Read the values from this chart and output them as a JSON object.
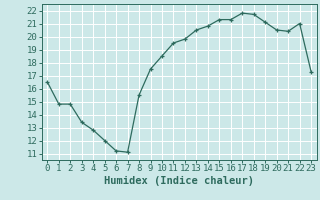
{
  "x": [
    0,
    1,
    2,
    3,
    4,
    5,
    6,
    7,
    8,
    9,
    10,
    11,
    12,
    13,
    14,
    15,
    16,
    17,
    18,
    19,
    20,
    21,
    22,
    23
  ],
  "y": [
    16.5,
    14.8,
    14.8,
    13.4,
    12.8,
    12.0,
    11.2,
    11.1,
    15.5,
    17.5,
    18.5,
    19.5,
    19.8,
    20.5,
    20.8,
    21.3,
    21.3,
    21.8,
    21.7,
    21.1,
    20.5,
    20.4,
    21.0,
    17.3
  ],
  "xlabel": "Humidex (Indice chaleur)",
  "ylabel_ticks": [
    11,
    12,
    13,
    14,
    15,
    16,
    17,
    18,
    19,
    20,
    21,
    22
  ],
  "xlim": [
    -0.5,
    23.5
  ],
  "ylim": [
    10.5,
    22.5
  ],
  "line_color": "#2e6b5e",
  "marker_color": "#2e6b5e",
  "bg_color": "#cce8e8",
  "grid_color": "#ffffff",
  "tick_color": "#2e6b5e",
  "label_color": "#2e6b5e",
  "xlabel_fontsize": 7.5,
  "tick_fontsize": 6.5,
  "xtick_labels": [
    "0",
    "1",
    "2",
    "3",
    "4",
    "5",
    "6",
    "7",
    "8",
    "9",
    "10",
    "11",
    "12",
    "13",
    "14",
    "15",
    "16",
    "17",
    "18",
    "19",
    "20",
    "21",
    "22",
    "23"
  ]
}
